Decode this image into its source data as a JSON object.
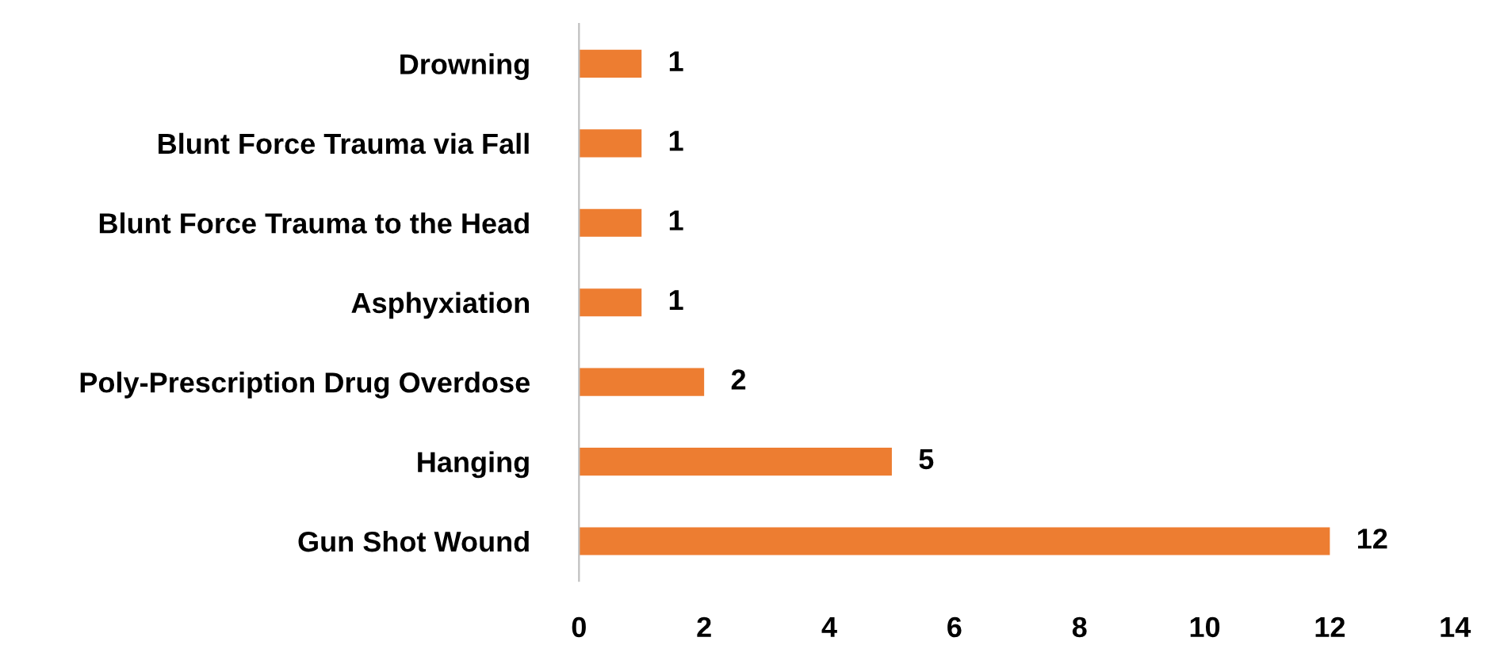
{
  "chart_data": {
    "type": "bar",
    "orientation": "horizontal",
    "categories": [
      "Drowning",
      "Blunt Force Trauma via Fall",
      "Blunt Force Trauma to the Head",
      "Asphyxiation",
      "Poly-Prescription Drug Overdose",
      "Hanging",
      "Gun Shot Wound"
    ],
    "values": [
      1,
      1,
      1,
      1,
      2,
      5,
      12
    ],
    "color": "#ed7d31",
    "xlim": [
      0,
      14
    ],
    "xticks": [
      0,
      2,
      4,
      6,
      8,
      10,
      12,
      14
    ],
    "grid": false,
    "data_labels": true
  }
}
